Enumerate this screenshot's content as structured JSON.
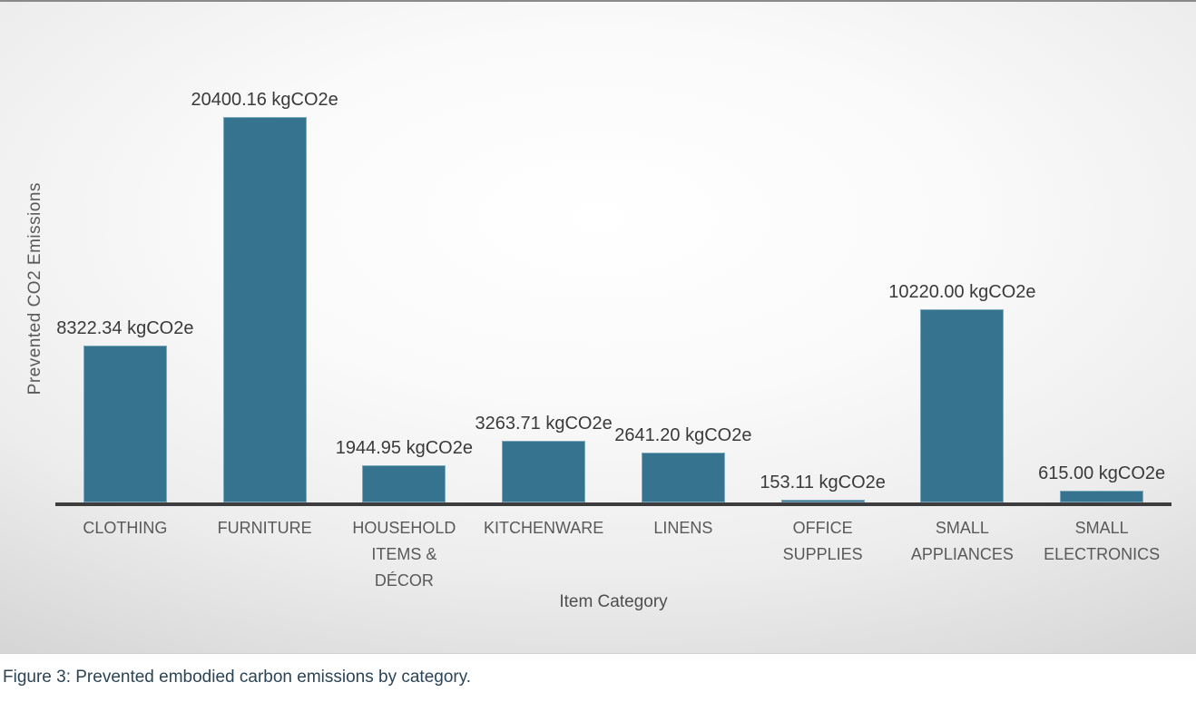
{
  "figure": {
    "caption": "Figure 3: Prevented embodied carbon emissions by category."
  },
  "chart_data": {
    "type": "bar",
    "title": "",
    "xlabel": "Item Category",
    "ylabel": "Prevented CO2 Emissions",
    "unit": "kgCO2e",
    "categories": [
      "CLOTHING",
      "FURNITURE",
      "HOUSEHOLD ITEMS & DÉCOR",
      "KITCHENWARE",
      "LINENS",
      "OFFICE SUPPLIES",
      "SMALL APPLIANCES",
      "SMALL ELECTRONICS"
    ],
    "category_lines": [
      [
        "CLOTHING"
      ],
      [
        "FURNITURE"
      ],
      [
        "HOUSEHOLD",
        "ITEMS &",
        "DÉCOR"
      ],
      [
        "KITCHENWARE"
      ],
      [
        "LINENS"
      ],
      [
        "OFFICE",
        "SUPPLIES"
      ],
      [
        "SMALL",
        "APPLIANCES"
      ],
      [
        "SMALL",
        "ELECTRONICS"
      ]
    ],
    "values": [
      8322.34,
      20400.16,
      1944.95,
      3263.71,
      2641.2,
      153.11,
      10220.0,
      615.0
    ],
    "data_labels": [
      "8322.34 kgCO2e",
      "20400.16 kgCO2e",
      "1944.95 kgCO2e",
      "3263.71 kgCO2e",
      "2641.20 kgCO2e",
      "153.11 kgCO2e",
      "10220.00 kgCO2e",
      "615.00 kgCO2e"
    ],
    "ylim": [
      0,
      20400.16
    ],
    "grid": false,
    "legend": "none",
    "colors": {
      "bar_fill": "#35738F",
      "bar_edge": "#7FA9BE",
      "axis_line": "#3d3d3d",
      "tick_text": "#595959",
      "data_label_text": "#3a3a3a",
      "axis_title_text": "#5a5a5a",
      "caption_text": "#2b4457"
    }
  }
}
